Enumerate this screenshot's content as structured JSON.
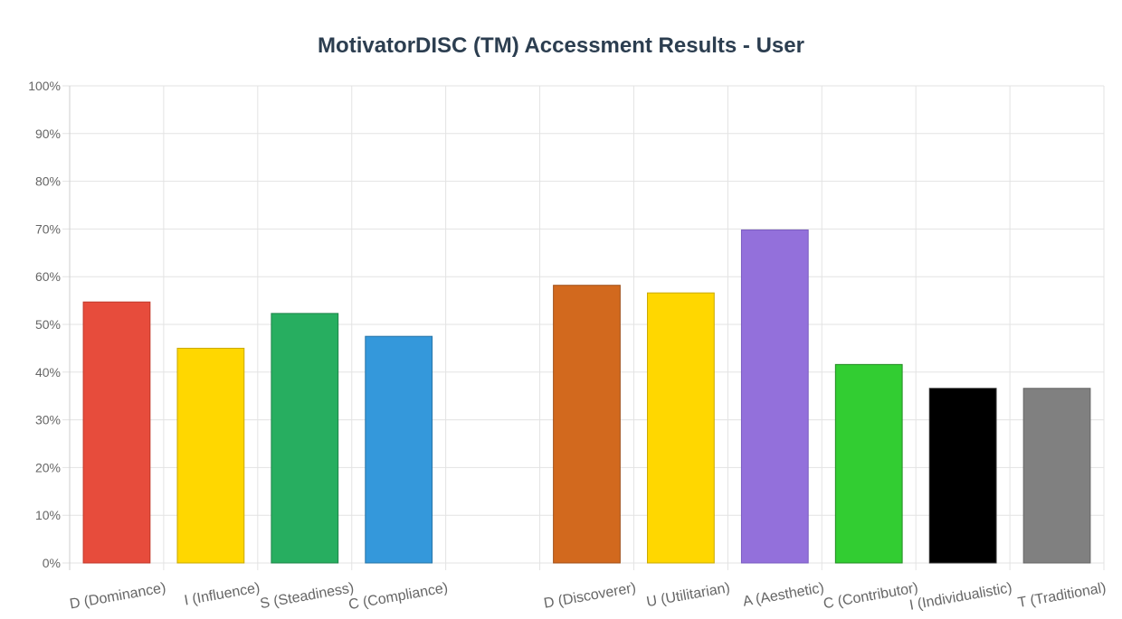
{
  "chart_data": {
    "type": "bar",
    "title": "MotivatorDISC (TM) Accessment Results - User",
    "xlabel": "",
    "ylabel": "",
    "ylim": [
      0,
      100
    ],
    "y_ticks": [
      0,
      10,
      20,
      30,
      40,
      50,
      60,
      70,
      80,
      90,
      100
    ],
    "y_tick_format": "{v}%",
    "grid": true,
    "legend": "none",
    "categories": [
      "D (Dominance)",
      "I (Influence)",
      "S (Steadiness)",
      "C (Compliance)",
      "",
      "D (Discoverer)",
      "U (Utilitarian)",
      "A (Aesthetic)",
      "C (Contributor)",
      "I (Individualistic)",
      "T (Traditional)"
    ],
    "values": [
      54.7,
      45,
      52.3,
      47.5,
      null,
      58.2,
      56.6,
      69.8,
      41.6,
      36.6,
      36.6
    ],
    "colors": [
      "#e74c3c",
      "#ffd700",
      "#27ae60",
      "#3498db",
      null,
      "#d2691e",
      "#ffd700",
      "#9370db",
      "#32cd32",
      "#000000",
      "#808080"
    ],
    "border_colors": [
      "#c0392b",
      "#c9a800",
      "#1e8449",
      "#2874a6",
      null,
      "#a0501a",
      "#c9a800",
      "#7a5cc0",
      "#228b22",
      "#333333",
      "#666666"
    ]
  }
}
